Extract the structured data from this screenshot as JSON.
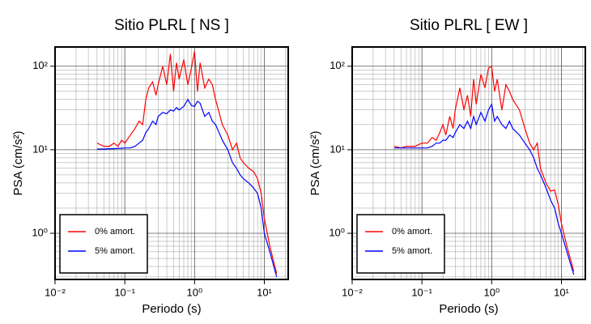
{
  "chart_data": [
    {
      "type": "line",
      "title": "Sitio PLRL [ NS ]",
      "x_label": "Periodo (s)",
      "y_label": "PSA (cm/s²)",
      "x_log": true,
      "y_log": true,
      "grid": true,
      "legend": "lower left",
      "xlim": [
        0.01,
        22
      ],
      "ylim": [
        0.28,
        170
      ],
      "xticks": [
        {
          "value": 0.01,
          "label": "10⁻²"
        },
        {
          "value": 0.1,
          "label": "10⁻¹"
        },
        {
          "value": 1,
          "label": "10⁰"
        },
        {
          "value": 10,
          "label": "10¹"
        }
      ],
      "yticks": [
        {
          "value": 1,
          "label": "10⁰"
        },
        {
          "value": 10,
          "label": "10¹"
        },
        {
          "value": 100,
          "label": "10²"
        }
      ],
      "x": [
        0.04,
        0.05,
        0.06,
        0.07,
        0.08,
        0.09,
        0.1,
        0.12,
        0.14,
        0.16,
        0.18,
        0.2,
        0.22,
        0.25,
        0.28,
        0.3,
        0.35,
        0.4,
        0.45,
        0.5,
        0.55,
        0.6,
        0.7,
        0.8,
        0.9,
        1.0,
        1.1,
        1.2,
        1.4,
        1.6,
        1.8,
        2.0,
        2.5,
        3.0,
        3.5,
        4.0,
        4.5,
        5.0,
        6.0,
        7.0,
        8.0,
        9.0,
        10,
        12,
        15
      ],
      "series": [
        {
          "name": "0% amort.",
          "color": "#ff0000",
          "values": [
            12,
            11,
            11,
            12,
            11,
            13,
            12,
            15,
            18,
            22,
            20,
            40,
            55,
            65,
            45,
            60,
            100,
            60,
            140,
            50,
            110,
            70,
            120,
            60,
            95,
            150,
            50,
            110,
            55,
            70,
            60,
            40,
            20,
            15,
            10,
            12,
            8,
            7,
            6,
            5.5,
            4.5,
            3,
            1.5,
            0.7,
            0.33
          ]
        },
        {
          "name": "5% amort.",
          "color": "#0000ff",
          "values": [
            10.2,
            10.2,
            10.3,
            10.3,
            10.4,
            10.4,
            10.5,
            10.5,
            11,
            12,
            13,
            16,
            18,
            22,
            20,
            25,
            28,
            27,
            30,
            29,
            32,
            30,
            33,
            40,
            34,
            33,
            38,
            36,
            25,
            28,
            22,
            20,
            13,
            10,
            7,
            6,
            5,
            4.5,
            4,
            3.5,
            3,
            2,
            1,
            0.6,
            0.3
          ]
        }
      ]
    },
    {
      "type": "line",
      "title": "Sitio PLRL [ EW ]",
      "x_label": "Periodo (s)",
      "y_label": "PSA (cm/s²)",
      "x_log": true,
      "y_log": true,
      "grid": true,
      "legend": "lower left",
      "xlim": [
        0.01,
        22
      ],
      "ylim": [
        0.28,
        170
      ],
      "xticks": [
        {
          "value": 0.01,
          "label": "10⁻²"
        },
        {
          "value": 0.1,
          "label": "10⁻¹"
        },
        {
          "value": 1,
          "label": "10⁰"
        },
        {
          "value": 10,
          "label": "10¹"
        }
      ],
      "yticks": [
        {
          "value": 1,
          "label": "10⁰"
        },
        {
          "value": 10,
          "label": "10¹"
        },
        {
          "value": 100,
          "label": "10²"
        }
      ],
      "x": [
        0.04,
        0.05,
        0.06,
        0.07,
        0.08,
        0.09,
        0.1,
        0.12,
        0.14,
        0.16,
        0.18,
        0.2,
        0.22,
        0.25,
        0.28,
        0.3,
        0.35,
        0.4,
        0.45,
        0.5,
        0.55,
        0.6,
        0.7,
        0.8,
        0.9,
        1.0,
        1.1,
        1.2,
        1.4,
        1.6,
        1.8,
        2.0,
        2.5,
        3.0,
        3.5,
        4.0,
        4.5,
        5.0,
        6.0,
        7.0,
        8.0,
        9.0,
        10,
        12,
        15
      ],
      "series": [
        {
          "name": "0% amort.",
          "color": "#ff0000",
          "values": [
            11,
            10.5,
            11,
            11,
            11,
            11.5,
            12,
            12,
            14,
            13,
            16,
            20,
            15,
            25,
            18,
            30,
            55,
            30,
            45,
            25,
            70,
            35,
            80,
            55,
            95,
            100,
            50,
            70,
            30,
            60,
            50,
            40,
            30,
            18,
            12,
            10,
            12,
            6,
            4,
            3.2,
            3.3,
            2.2,
            1.3,
            0.7,
            0.35
          ]
        },
        {
          "name": "5% amort.",
          "color": "#0000ff",
          "values": [
            10.5,
            10.5,
            10.5,
            10.5,
            10.5,
            10.5,
            10.5,
            10.5,
            11,
            12,
            12,
            13,
            13,
            15,
            14,
            16,
            20,
            18,
            22,
            18,
            25,
            20,
            28,
            22,
            30,
            35,
            22,
            25,
            20,
            18,
            22,
            18,
            15,
            12,
            10,
            8,
            6,
            5,
            3.5,
            2.5,
            2,
            1.3,
            1,
            0.6,
            0.32
          ]
        }
      ]
    }
  ]
}
